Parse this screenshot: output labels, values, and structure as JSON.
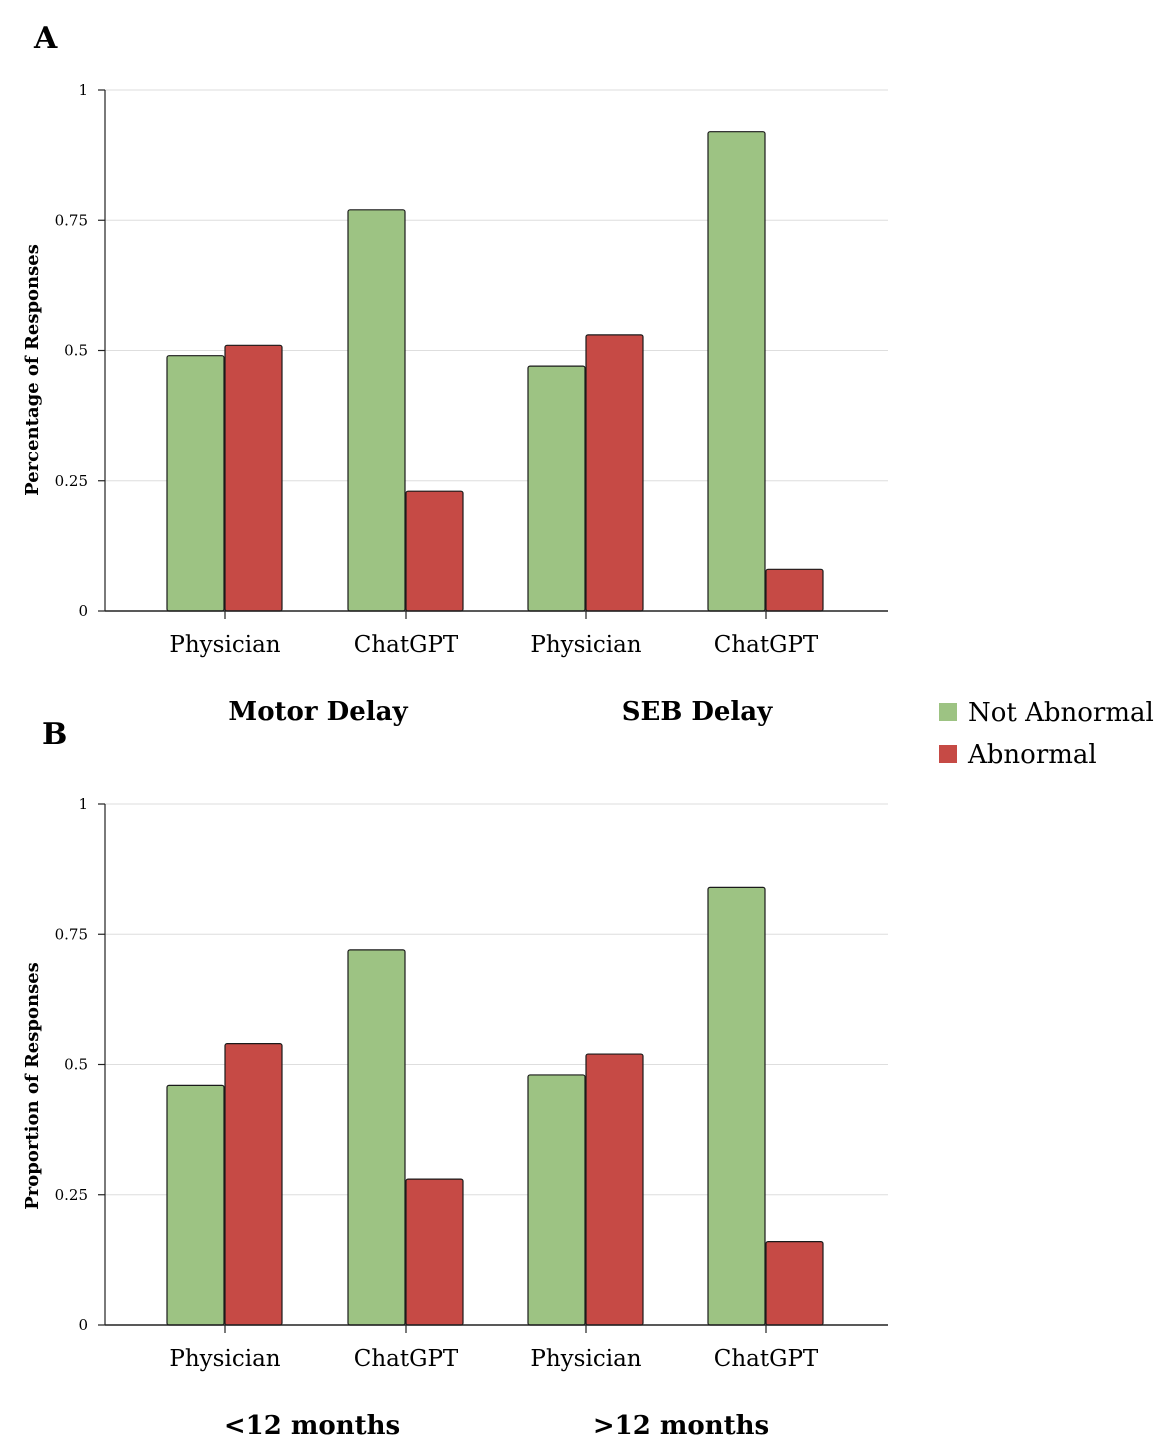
{
  "legend": [
    {
      "label": "Not Abnormal",
      "color": "#9dc383"
    },
    {
      "label": "Abnormal",
      "color": "#c64a45"
    }
  ],
  "chart_data": [
    {
      "type": "bar",
      "panel": "A",
      "ylabel": "Percentage of Responses",
      "ylim": [
        0,
        1
      ],
      "yticks": [
        "0",
        "0.25",
        "0.5",
        "0.75",
        "1"
      ],
      "categories": [
        "Physician",
        "ChatGPT",
        "Physician",
        "ChatGPT"
      ],
      "groups": [
        "Motor Delay",
        "SEB Delay"
      ],
      "grid": true,
      "series": [
        {
          "name": "Not Abnormal",
          "values": [
            0.49,
            0.77,
            0.47,
            0.92
          ]
        },
        {
          "name": "Abnormal",
          "values": [
            0.51,
            0.23,
            0.53,
            0.08
          ]
        }
      ]
    },
    {
      "type": "bar",
      "panel": "B",
      "ylabel": "Proportion of Responses",
      "ylim": [
        0,
        1
      ],
      "yticks": [
        "0",
        "0.25",
        "0.5",
        "0.75",
        "1"
      ],
      "categories": [
        "Physician",
        "ChatGPT",
        "Physician",
        "ChatGPT"
      ],
      "groups": [
        "<12 months",
        ">12 months"
      ],
      "grid": true,
      "series": [
        {
          "name": "Not Abnormal",
          "values": [
            0.46,
            0.72,
            0.48,
            0.84
          ]
        },
        {
          "name": "Abnormal",
          "values": [
            0.54,
            0.28,
            0.52,
            0.16
          ]
        }
      ]
    }
  ]
}
